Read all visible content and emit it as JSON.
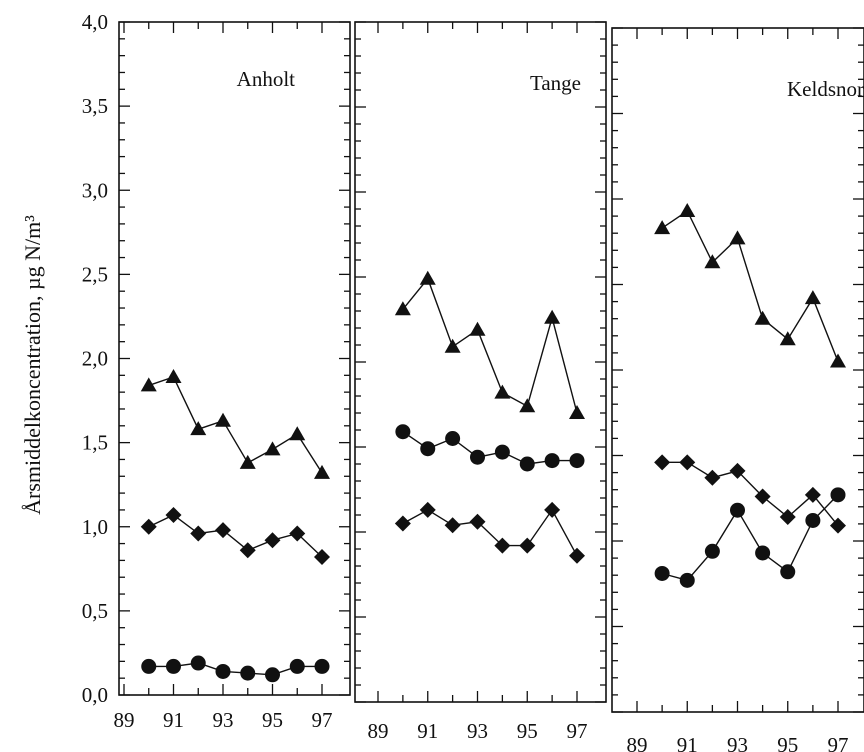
{
  "chart_data": {
    "type": "line",
    "ylabel": "Årsmiddelkoncentration, µg N/m³",
    "ylim": [
      0,
      4.0
    ],
    "y_ticks": [
      "0,0",
      "0,5",
      "1,0",
      "1,5",
      "2,0",
      "2,5",
      "3,0",
      "3,5",
      "4,0"
    ],
    "x_ticks": [
      "89",
      "91",
      "93",
      "95",
      "97"
    ],
    "xlim": [
      1989,
      1997.5
    ],
    "panels": [
      {
        "title": "Anholt",
        "x": [
          1990,
          1991,
          1992,
          1993,
          1994,
          1995,
          1996,
          1997
        ],
        "series": [
          {
            "marker": "triangle",
            "values": [
              1.84,
              1.89,
              1.58,
              1.63,
              1.38,
              1.46,
              1.55,
              1.32
            ]
          },
          {
            "marker": "diamond",
            "values": [
              1.0,
              1.07,
              0.96,
              0.98,
              0.86,
              0.92,
              0.96,
              0.82
            ]
          },
          {
            "marker": "circle",
            "values": [
              0.17,
              0.17,
              0.19,
              0.14,
              0.13,
              0.12,
              0.17,
              0.17
            ]
          }
        ]
      },
      {
        "title": "Tange",
        "x": [
          1990,
          1991,
          1992,
          1993,
          1994,
          1995,
          1996,
          1997
        ],
        "series": [
          {
            "marker": "triangle",
            "values": [
              2.31,
              2.49,
              2.09,
              2.19,
              1.82,
              1.74,
              2.26,
              1.7
            ]
          },
          {
            "marker": "circle",
            "values": [
              1.59,
              1.49,
              1.55,
              1.44,
              1.47,
              1.4,
              1.42,
              1.42
            ]
          },
          {
            "marker": "diamond",
            "values": [
              1.05,
              1.13,
              1.04,
              1.06,
              0.92,
              0.92,
              1.13,
              0.86
            ]
          }
        ]
      },
      {
        "title": "Keldsnor",
        "x": [
          1990,
          1991,
          1992,
          1993,
          1994,
          1995,
          1996,
          1997
        ],
        "series": [
          {
            "marker": "triangle",
            "values": [
              2.83,
              2.93,
              2.63,
              2.77,
              2.3,
              2.18,
              2.42,
              2.05
            ]
          },
          {
            "marker": "diamond",
            "values": [
              1.46,
              1.46,
              1.37,
              1.41,
              1.26,
              1.14,
              1.27,
              1.09
            ]
          },
          {
            "marker": "circle",
            "values": [
              0.81,
              0.77,
              0.94,
              1.18,
              0.93,
              0.82,
              1.12,
              1.27
            ]
          }
        ]
      }
    ]
  }
}
